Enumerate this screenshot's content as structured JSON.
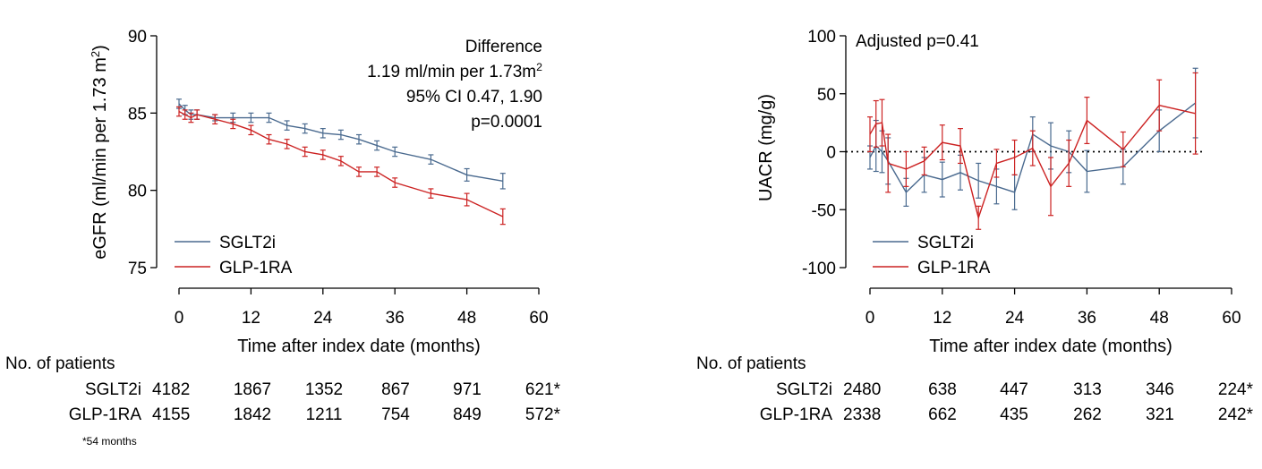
{
  "footnote": "*54 months",
  "colors": {
    "sglt2i": "#4a6a8f",
    "glp1ra": "#cc2222"
  },
  "chart_data": [
    {
      "type": "line",
      "xlabel": "Time after index date (months)",
      "ylabel": "eGFR (ml/min per 1.73 m²)",
      "xlim": [
        0,
        60
      ],
      "ylim": [
        75,
        90
      ],
      "xticks": [
        "0",
        "12",
        "24",
        "36",
        "48",
        "60"
      ],
      "yticks": [
        "75",
        "80",
        "85",
        "90"
      ],
      "annotation": [
        "Difference",
        "1.19 ml/min per 1.73m²",
        "95% CI 0.47, 1.90",
        "p=0.0001"
      ],
      "legend": [
        "SGLT2i",
        "GLP-1RA"
      ],
      "legend_position": "bottom-left",
      "series": [
        {
          "name": "SGLT2i",
          "x": [
            0,
            1,
            2,
            3,
            6,
            9,
            12,
            15,
            18,
            21,
            24,
            27,
            30,
            33,
            36,
            42,
            48,
            54
          ],
          "y": [
            85.6,
            85.2,
            84.9,
            84.9,
            84.7,
            84.7,
            84.7,
            84.7,
            84.2,
            84.0,
            83.7,
            83.6,
            83.3,
            82.9,
            82.5,
            82.0,
            81.0,
            80.6
          ],
          "err": [
            0.3,
            0.3,
            0.3,
            0.3,
            0.2,
            0.3,
            0.3,
            0.3,
            0.3,
            0.3,
            0.3,
            0.3,
            0.3,
            0.3,
            0.3,
            0.3,
            0.4,
            0.5
          ]
        },
        {
          "name": "GLP-1RA",
          "x": [
            0,
            1,
            2,
            3,
            6,
            9,
            12,
            15,
            18,
            21,
            24,
            27,
            30,
            33,
            36,
            42,
            48,
            54
          ],
          "y": [
            85.1,
            84.9,
            84.7,
            84.9,
            84.6,
            84.3,
            83.9,
            83.3,
            83.0,
            82.5,
            82.3,
            81.9,
            81.2,
            81.2,
            80.5,
            79.8,
            79.4,
            78.3
          ],
          "err": [
            0.3,
            0.3,
            0.3,
            0.3,
            0.3,
            0.3,
            0.3,
            0.3,
            0.3,
            0.3,
            0.3,
            0.3,
            0.3,
            0.3,
            0.3,
            0.3,
            0.4,
            0.5
          ]
        }
      ],
      "patients": {
        "header": "No. of patients",
        "rows": [
          {
            "label": "SGLT2i",
            "values": [
              "4182",
              "1867",
              "1352",
              "867",
              "971",
              "621*"
            ]
          },
          {
            "label": "GLP-1RA",
            "values": [
              "4155",
              "1842",
              "1211",
              "754",
              "849",
              "572*"
            ]
          }
        ]
      }
    },
    {
      "type": "line",
      "xlabel": "Time after index date (months)",
      "ylabel": "UACR (mg/g)",
      "xlim": [
        0,
        60
      ],
      "ylim": [
        -100,
        100
      ],
      "xticks": [
        "0",
        "12",
        "24",
        "36",
        "48",
        "60"
      ],
      "yticks": [
        "-100",
        "-50",
        "0",
        "50",
        "100"
      ],
      "reference_line": 0,
      "annotation": [
        "Adjusted p=0.41"
      ],
      "legend": [
        "SGLT2i",
        "GLP-1RA"
      ],
      "legend_position": "bottom-left",
      "series": [
        {
          "name": "SGLT2i",
          "x": [
            0,
            1,
            2,
            3,
            6,
            9,
            12,
            15,
            18,
            21,
            24,
            27,
            30,
            33,
            36,
            42,
            48,
            54
          ],
          "y": [
            -5,
            5,
            0,
            -8,
            -35,
            -20,
            -24,
            -18,
            -25,
            -30,
            -35,
            15,
            5,
            0,
            -17,
            -13,
            18,
            42
          ],
          "err": [
            10,
            22,
            18,
            20,
            12,
            15,
            15,
            15,
            15,
            15,
            15,
            15,
            20,
            18,
            18,
            15,
            18,
            30
          ]
        },
        {
          "name": "GLP-1RA",
          "x": [
            0,
            1,
            2,
            3,
            6,
            9,
            12,
            15,
            18,
            21,
            24,
            27,
            30,
            33,
            36,
            42,
            48,
            54
          ],
          "y": [
            15,
            24,
            25,
            -10,
            -15,
            -8,
            8,
            5,
            -57,
            -10,
            -5,
            3,
            -30,
            -10,
            27,
            2,
            40,
            33
          ],
          "err": [
            15,
            20,
            20,
            25,
            15,
            12,
            15,
            15,
            10,
            12,
            15,
            15,
            25,
            20,
            20,
            15,
            22,
            35
          ]
        }
      ],
      "patients": {
        "header": "No. of patients",
        "rows": [
          {
            "label": "SGLT2i",
            "values": [
              "2480",
              "638",
              "447",
              "313",
              "346",
              "224*"
            ]
          },
          {
            "label": "GLP-1RA",
            "values": [
              "2338",
              "662",
              "435",
              "262",
              "321",
              "242*"
            ]
          }
        ]
      }
    }
  ]
}
